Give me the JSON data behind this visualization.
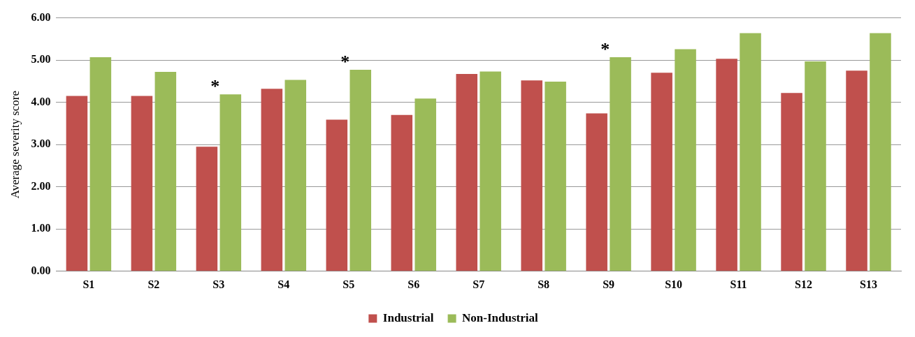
{
  "chart_data": {
    "type": "bar",
    "ylabel": "Average severity score",
    "categories": [
      "S1",
      "S2",
      "S3",
      "S4",
      "S5",
      "S6",
      "S7",
      "S8",
      "S9",
      "S10",
      "S11",
      "S12",
      "S13"
    ],
    "series": [
      {
        "name": "Industrial",
        "color": "#c0504d",
        "values": [
          4.15,
          4.15,
          2.95,
          4.32,
          3.59,
          3.7,
          4.67,
          4.52,
          3.74,
          4.7,
          5.03,
          4.22,
          4.75
        ]
      },
      {
        "name": "Non-Industrial",
        "color": "#9bbb59",
        "values": [
          5.07,
          4.72,
          4.19,
          4.53,
          4.77,
          4.09,
          4.73,
          4.49,
          5.07,
          5.26,
          5.64,
          4.97,
          5.64
        ]
      }
    ],
    "ylim": [
      0,
      6
    ],
    "yticks": [
      {
        "value": 0,
        "label": "0.00"
      },
      {
        "value": 1,
        "label": "1.00"
      },
      {
        "value": 2,
        "label": "2.00"
      },
      {
        "value": 3,
        "label": "3.00"
      },
      {
        "value": 4,
        "label": "4.00"
      },
      {
        "value": 5,
        "label": "5.00"
      },
      {
        "value": 6,
        "label": "6.00"
      }
    ],
    "annotations": [
      {
        "text": "*",
        "x": "S3",
        "y": 4.19
      },
      {
        "text": "*",
        "x": "S5",
        "y": 4.77
      },
      {
        "text": "*",
        "x": "S9",
        "y": 5.07
      }
    ],
    "grid": "y",
    "legend": "bottom"
  }
}
